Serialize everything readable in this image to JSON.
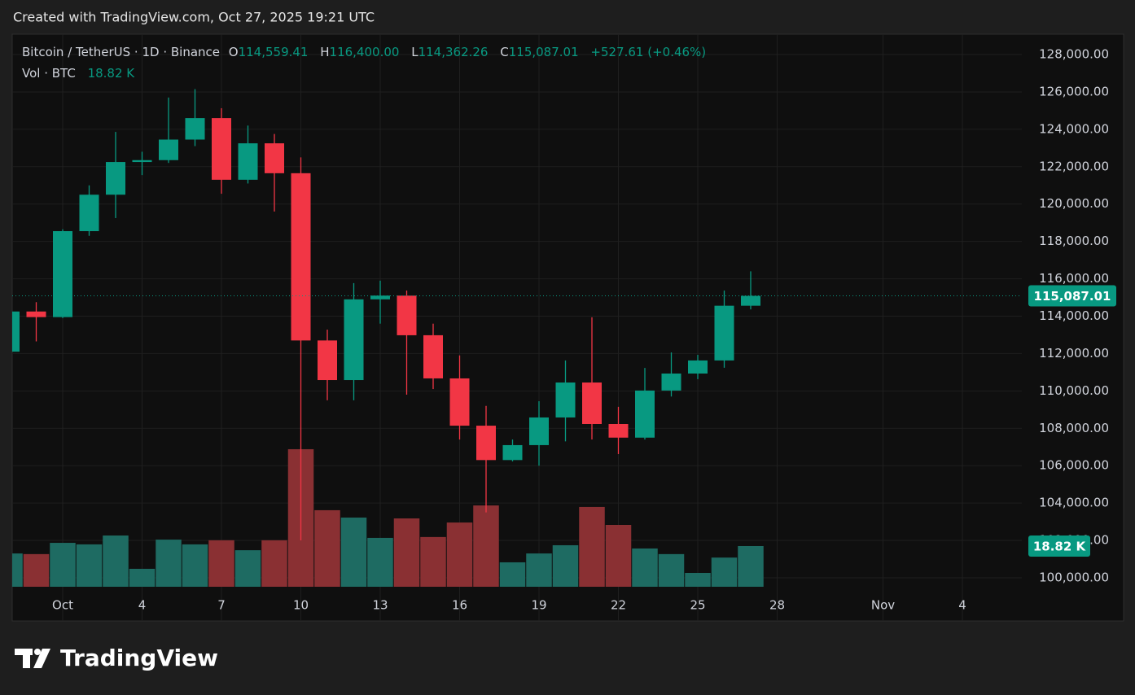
{
  "header": {
    "caption": "Created with TradingView.com, Oct 27, 2025 19:21 UTC"
  },
  "footer": {
    "brand": "TradingView"
  },
  "chart_data": {
    "type": "candlestick",
    "legend": {
      "symbol": "Bitcoin / TetherUS · 1D · Binance",
      "open_key": "O",
      "open": "114,559.41",
      "high_key": "H",
      "high": "116,400.00",
      "low_key": "L",
      "low": "114,362.26",
      "close_key": "C",
      "close": "115,087.01",
      "change": "+527.61 (+0.46%)",
      "volume_key": "Vol · BTC"
    },
    "categories": [
      null,
      null,
      "Oct",
      null,
      null,
      "4",
      null,
      null,
      "7",
      null,
      null,
      "10",
      null,
      null,
      "13",
      null,
      null,
      "16",
      null,
      null,
      "19",
      null,
      null,
      "22",
      null,
      null,
      "25",
      null,
      null,
      "28",
      null,
      null,
      null,
      "Nov",
      null,
      null,
      "4",
      null,
      null
    ],
    "open": [
      112100,
      114250,
      113950,
      118550,
      120500,
      122250,
      122350,
      123450,
      124600,
      121300,
      123250,
      121650,
      112700,
      110580,
      114900,
      115100,
      112980,
      110670,
      108140,
      106300,
      107100,
      108580,
      110450,
      108230,
      107500,
      110020,
      110930,
      111630,
      114559.41,
      null,
      null,
      null,
      null,
      null,
      null,
      null,
      null,
      null,
      null
    ],
    "high": [
      114400,
      114750,
      118650,
      121000,
      123860,
      122800,
      125700,
      126150,
      125130,
      124200,
      123750,
      122500,
      113280,
      115770,
      115900,
      115370,
      113600,
      111900,
      109200,
      107400,
      109450,
      111630,
      113940,
      109150,
      111230,
      112060,
      111930,
      115370,
      116400,
      null,
      null,
      null,
      null,
      null,
      null,
      null,
      null,
      null,
      null
    ],
    "low": [
      112000,
      112650,
      113900,
      118300,
      119250,
      121550,
      122200,
      123100,
      120550,
      121100,
      119600,
      102000,
      109500,
      109500,
      113600,
      109800,
      110100,
      107400,
      103500,
      106230,
      106000,
      107300,
      107400,
      106620,
      107400,
      109700,
      110630,
      111240,
      114362.26,
      null,
      null,
      null,
      null,
      null,
      null,
      null,
      null,
      null,
      null
    ],
    "close": [
      114250,
      113950,
      118550,
      120500,
      122250,
      122350,
      123450,
      124600,
      121300,
      123250,
      121650,
      112700,
      110580,
      114900,
      115100,
      112980,
      110670,
      108140,
      106300,
      107100,
      108580,
      110450,
      108230,
      107500,
      110020,
      110930,
      111630,
      114559.41,
      115087.01,
      null,
      null,
      null,
      null,
      null,
      null,
      null,
      null,
      null,
      null
    ],
    "close_label": "115,087.01",
    "volume": [
      15.4,
      15.1,
      20.3,
      19.6,
      23.7,
      8.3,
      21.8,
      19.6,
      21.5,
      16.9,
      21.5,
      63.6,
      35.4,
      32.0,
      22.6,
      31.6,
      23.0,
      29.7,
      37.6,
      11.3,
      15.4,
      19.2,
      36.9,
      28.6,
      17.7,
      15.1,
      6.4,
      13.5,
      18.82,
      null,
      null,
      null,
      null,
      null,
      null,
      null,
      null,
      null,
      null
    ],
    "volume_labels": {
      "28": "18.82 K"
    },
    "up_color": "#089981",
    "down_color": "#f23645",
    "volume_up_color": "#1e6b62",
    "volume_down_color": "#8a3033",
    "ylim": [
      99520,
      129090
    ],
    "yticks": [
      {
        "value": 100000,
        "label": "100,000.00"
      },
      {
        "value": 102000,
        "label": "102,000.00"
      },
      {
        "value": 104000,
        "label": "104,000.00"
      },
      {
        "value": 106000,
        "label": "106,000.00"
      },
      {
        "value": 108000,
        "label": "108,000.00"
      },
      {
        "value": 110000,
        "label": "110,000.00"
      },
      {
        "value": 112000,
        "label": "112,000.00"
      },
      {
        "value": 114000,
        "label": "114,000.00"
      },
      {
        "value": 116000,
        "label": "116,000.00"
      },
      {
        "value": 118000,
        "label": "118,000.00"
      },
      {
        "value": 120000,
        "label": "120,000.00"
      },
      {
        "value": 122000,
        "label": "122,000.00"
      },
      {
        "value": 124000,
        "label": "124,000.00"
      },
      {
        "value": 126000,
        "label": "126,000.00"
      },
      {
        "value": 128000,
        "label": "128,000.00"
      }
    ],
    "y2lim": [
      0,
      255.5
    ],
    "grid": true
  }
}
